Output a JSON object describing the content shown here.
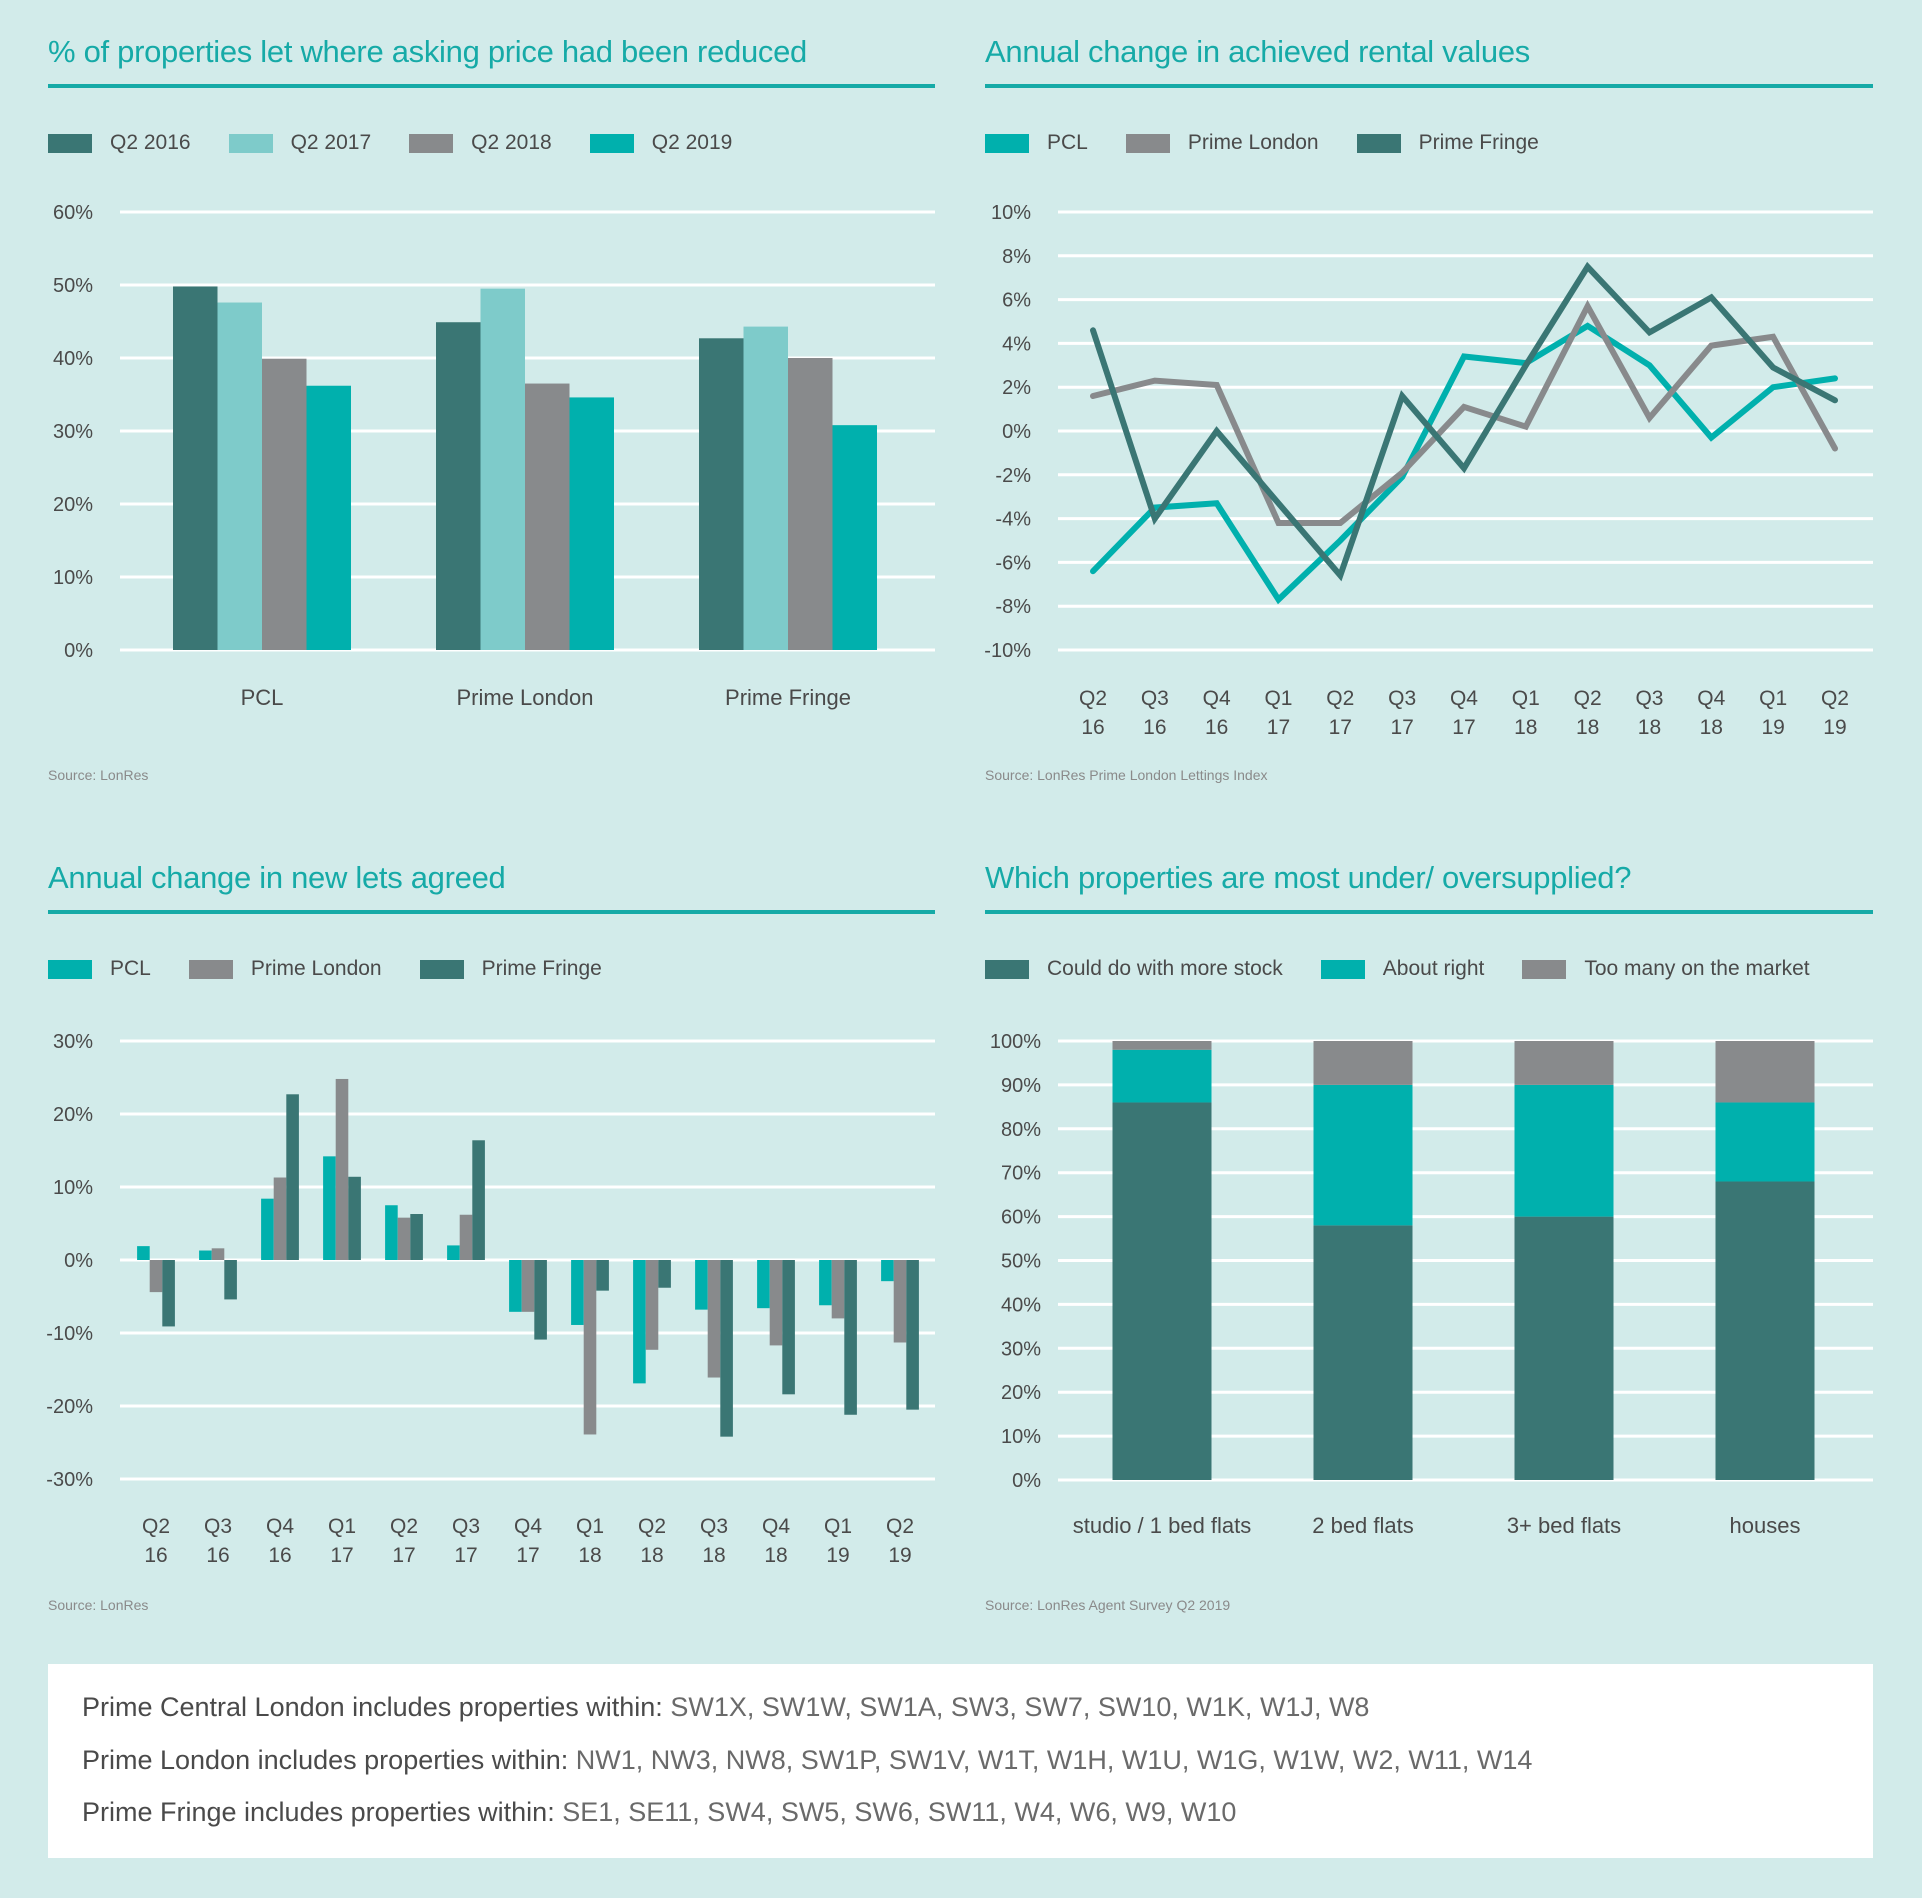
{
  "colors": {
    "background": "#d2ebea",
    "title": "#16aaa7",
    "dark_teal": "#3a7674",
    "light_teal": "#7ecbca",
    "gray": "#888a8c",
    "teal": "#00b0ad",
    "gridline": "#ffffff"
  },
  "panels": {
    "price_reduced": {
      "title": "% of properties let where asking price had been reduced",
      "source": "Source: LonRes",
      "legend": [
        {
          "label": "Q2 2016",
          "color": "#3a7674"
        },
        {
          "label": "Q2 2017",
          "color": "#7ecbca"
        },
        {
          "label": "Q2 2018",
          "color": "#888a8c"
        },
        {
          "label": "Q2 2019",
          "color": "#00b0ad"
        }
      ]
    },
    "rental_values": {
      "title": "Annual change in achieved rental values",
      "source": "Source: LonRes Prime London Lettings Index",
      "legend": [
        {
          "label": "PCL",
          "color": "#00b0ad"
        },
        {
          "label": "Prime London",
          "color": "#888a8c"
        },
        {
          "label": "Prime Fringe",
          "color": "#3a7674"
        }
      ]
    },
    "new_lets": {
      "title": "Annual change in new lets agreed",
      "source": "Source: LonRes",
      "legend": [
        {
          "label": "PCL",
          "color": "#00b0ad"
        },
        {
          "label": "Prime London",
          "color": "#888a8c"
        },
        {
          "label": "Prime Fringe",
          "color": "#3a7674"
        }
      ]
    },
    "supply": {
      "title": "Which properties are most under/ oversupplied?",
      "source": "Source: LonRes Agent Survey Q2 2019",
      "legend": [
        {
          "label": "Could do with more stock",
          "color": "#3a7674"
        },
        {
          "label": "About right",
          "color": "#00b0ad"
        },
        {
          "label": "Too many on the market",
          "color": "#888a8c"
        }
      ]
    }
  },
  "footer": {
    "rows": [
      {
        "lead": "Prime Central London includes properties within:",
        "codes": "SW1X, SW1W, SW1A, SW3, SW7, SW10, W1K, W1J, W8"
      },
      {
        "lead": "Prime London includes properties within:",
        "codes": "NW1, NW3, NW8, SW1P, SW1V, W1T, W1H, W1U, W1G, W1W, W2, W11, W14"
      },
      {
        "lead": "Prime Fringe includes properties within:",
        "codes": "SE1, SE11, SW4, SW5, SW6, SW11, W4, W6, W9, W10"
      }
    ]
  },
  "chart_data": [
    {
      "id": "price_reduced",
      "type": "bar",
      "title": "% of properties let where asking price had been reduced",
      "categories": [
        "PCL",
        "Prime London",
        "Prime Fringe"
      ],
      "series": [
        {
          "name": "Q2 2016",
          "color": "#3a7674",
          "values": [
            49.8,
            44.9,
            42.7
          ]
        },
        {
          "name": "Q2 2017",
          "color": "#7ecbca",
          "values": [
            47.6,
            49.5,
            44.3
          ]
        },
        {
          "name": "Q2 2018",
          "color": "#888a8c",
          "values": [
            39.9,
            36.5,
            40.0
          ]
        },
        {
          "name": "Q2 2019",
          "color": "#00b0ad",
          "values": [
            36.2,
            34.6,
            30.8
          ]
        }
      ],
      "ylim": [
        0,
        60
      ],
      "yticks": [
        0,
        10,
        20,
        30,
        40,
        50,
        60
      ],
      "ytick_labels": [
        "0%",
        "10%",
        "20%",
        "30%",
        "40%",
        "50%",
        "60%"
      ],
      "xlabel": "",
      "ylabel": "",
      "grid": true,
      "legend": "top-left"
    },
    {
      "id": "rental_values",
      "type": "line",
      "title": "Annual change in achieved rental values",
      "x": [
        "Q2 16",
        "Q3 16",
        "Q4 16",
        "Q1 17",
        "Q2 17",
        "Q3 17",
        "Q4 17",
        "Q1 18",
        "Q2 18",
        "Q3 18",
        "Q4 18",
        "Q1 19",
        "Q2 19"
      ],
      "x_labels": [
        [
          "Q2",
          "16"
        ],
        [
          "Q3",
          "16"
        ],
        [
          "Q4",
          "16"
        ],
        [
          "Q1",
          "17"
        ],
        [
          "Q2",
          "17"
        ],
        [
          "Q3",
          "17"
        ],
        [
          "Q4",
          "17"
        ],
        [
          "Q1",
          "18"
        ],
        [
          "Q2",
          "18"
        ],
        [
          "Q3",
          "18"
        ],
        [
          "Q4",
          "18"
        ],
        [
          "Q1",
          "19"
        ],
        [
          "Q2",
          "19"
        ]
      ],
      "series": [
        {
          "name": "PCL",
          "color": "#00b0ad",
          "values": [
            -6.4,
            -3.5,
            -3.3,
            -7.7,
            -5.0,
            -2.1,
            3.4,
            3.1,
            4.8,
            3.0,
            -0.3,
            2.0,
            2.4
          ]
        },
        {
          "name": "Prime London",
          "color": "#888a8c",
          "values": [
            1.6,
            2.3,
            2.1,
            -4.2,
            -4.2,
            -1.9,
            1.1,
            0.2,
            5.7,
            0.6,
            3.9,
            4.3,
            -0.8
          ]
        },
        {
          "name": "Prime Fringe",
          "color": "#3a7674",
          "values": [
            4.6,
            -4.0,
            0.0,
            -3.3,
            -6.6,
            1.6,
            -1.7,
            3.0,
            7.5,
            4.5,
            6.1,
            2.9,
            1.4
          ]
        }
      ],
      "ylim": [
        -10,
        10
      ],
      "yticks": [
        -10,
        -8,
        -6,
        -4,
        -2,
        0,
        2,
        4,
        6,
        8,
        10
      ],
      "ytick_labels": [
        "-10%",
        "-8%",
        "-6%",
        "-4%",
        "-2%",
        "0%",
        "2%",
        "4%",
        "6%",
        "8%",
        "10%"
      ],
      "xlabel": "",
      "ylabel": "",
      "grid": true,
      "legend": "top-left"
    },
    {
      "id": "new_lets",
      "type": "bar",
      "title": "Annual change in new lets agreed",
      "categories": [
        "Q2 16",
        "Q3 16",
        "Q4 16",
        "Q1 17",
        "Q2 17",
        "Q3 17",
        "Q4 17",
        "Q1 18",
        "Q2 18",
        "Q3 18",
        "Q4 18",
        "Q1 19",
        "Q2 19"
      ],
      "x_labels": [
        [
          "Q2",
          "16"
        ],
        [
          "Q3",
          "16"
        ],
        [
          "Q4",
          "16"
        ],
        [
          "Q1",
          "17"
        ],
        [
          "Q2",
          "17"
        ],
        [
          "Q3",
          "17"
        ],
        [
          "Q4",
          "17"
        ],
        [
          "Q1",
          "18"
        ],
        [
          "Q2",
          "18"
        ],
        [
          "Q3",
          "18"
        ],
        [
          "Q4",
          "18"
        ],
        [
          "Q1",
          "19"
        ],
        [
          "Q2",
          "19"
        ]
      ],
      "series": [
        {
          "name": "PCL",
          "color": "#00b0ad",
          "values": [
            1.9,
            1.3,
            8.4,
            14.2,
            7.5,
            2.0,
            -7.1,
            -8.9,
            -16.9,
            -6.8,
            -6.6,
            -6.2,
            -2.9
          ]
        },
        {
          "name": "Prime London",
          "color": "#888a8c",
          "values": [
            -4.4,
            1.6,
            11.3,
            24.8,
            5.8,
            6.2,
            -7.1,
            -23.9,
            -12.3,
            -16.1,
            -11.7,
            -8.0,
            -11.3
          ]
        },
        {
          "name": "Prime Fringe",
          "color": "#3a7674",
          "values": [
            -9.1,
            -5.4,
            22.7,
            11.4,
            6.3,
            16.4,
            -10.9,
            -4.2,
            -3.8,
            -24.2,
            -18.4,
            -21.2,
            -20.5
          ]
        }
      ],
      "ylim": [
        -30,
        30
      ],
      "yticks": [
        -30,
        -20,
        -10,
        0,
        10,
        20,
        30
      ],
      "ytick_labels": [
        "-30%",
        "-20%",
        "-10%",
        "0%",
        "10%",
        "20%",
        "30%"
      ],
      "xlabel": "",
      "ylabel": "",
      "grid": true,
      "legend": "top-left"
    },
    {
      "id": "supply",
      "type": "bar",
      "stacked": true,
      "title": "Which properties are most under/ oversupplied?",
      "categories": [
        "studio / 1 bed flats",
        "2 bed flats",
        "3+ bed flats",
        "houses"
      ],
      "series": [
        {
          "name": "Could do with more stock",
          "color": "#3a7674",
          "values": [
            86,
            58,
            60,
            68
          ]
        },
        {
          "name": "About right",
          "color": "#00b0ad",
          "values": [
            12,
            32,
            30,
            18
          ]
        },
        {
          "name": "Too many on the market",
          "color": "#888a8c",
          "values": [
            2,
            10,
            10,
            14
          ]
        }
      ],
      "ylim": [
        0,
        100
      ],
      "yticks": [
        0,
        10,
        20,
        30,
        40,
        50,
        60,
        70,
        80,
        90,
        100
      ],
      "ytick_labels": [
        "0%",
        "10%",
        "20%",
        "30%",
        "40%",
        "50%",
        "60%",
        "70%",
        "80%",
        "90%",
        "100%"
      ],
      "xlabel": "",
      "ylabel": "",
      "grid": true,
      "legend": "top-left"
    }
  ]
}
